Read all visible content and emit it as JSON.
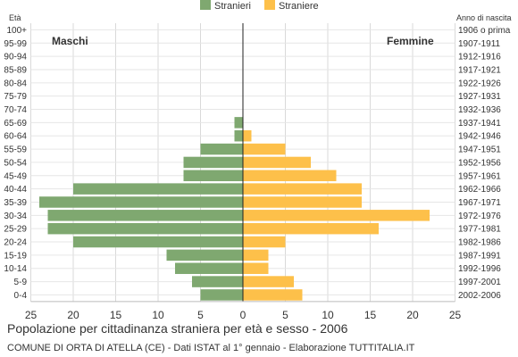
{
  "chart_data": {
    "type": "bar",
    "orientation": "horizontal-pyramid",
    "title": "Popolazione per cittadinanza straniera per età e sesso - 2006",
    "subtitle": "COMUNE DI ORTA DI ATELLA (CE) - Dati ISTAT al 1° gennaio - Elaborazione TUTTITALIA.IT",
    "y_left_label": "Età",
    "y_right_label": "Anno di nascita",
    "left_side_label": "Maschi",
    "right_side_label": "Femmine",
    "legend_position": "top-center",
    "grid": true,
    "xlim": [
      -25,
      25
    ],
    "x_ticks": [
      "25",
      "20",
      "15",
      "10",
      "5",
      "0",
      "5",
      "10",
      "15",
      "20",
      "25"
    ],
    "categories": [
      "100+",
      "95-99",
      "90-94",
      "85-89",
      "80-84",
      "75-79",
      "70-74",
      "65-69",
      "60-64",
      "55-59",
      "50-54",
      "45-49",
      "40-44",
      "35-39",
      "30-34",
      "25-29",
      "20-24",
      "15-19",
      "10-14",
      "5-9",
      "0-4"
    ],
    "birth_years": [
      "1906 o prima",
      "1907-1911",
      "1912-1916",
      "1917-1921",
      "1922-1926",
      "1927-1931",
      "1932-1936",
      "1937-1941",
      "1942-1946",
      "1947-1951",
      "1952-1956",
      "1957-1961",
      "1962-1966",
      "1967-1971",
      "1972-1976",
      "1977-1981",
      "1982-1986",
      "1987-1991",
      "1992-1996",
      "1997-2001",
      "2002-2006"
    ],
    "series": [
      {
        "name": "Stranieri",
        "color": "#7fa870",
        "values": [
          0,
          0,
          0,
          0,
          0,
          0,
          0,
          1,
          1,
          5,
          7,
          7,
          20,
          24,
          23,
          23,
          20,
          9,
          8,
          6,
          5
        ]
      },
      {
        "name": "Straniere",
        "color": "#fdc04a",
        "values": [
          0,
          0,
          0,
          0,
          0,
          0,
          0,
          0,
          1,
          5,
          8,
          11,
          14,
          14,
          22,
          16,
          5,
          3,
          3,
          6,
          7
        ]
      }
    ]
  }
}
